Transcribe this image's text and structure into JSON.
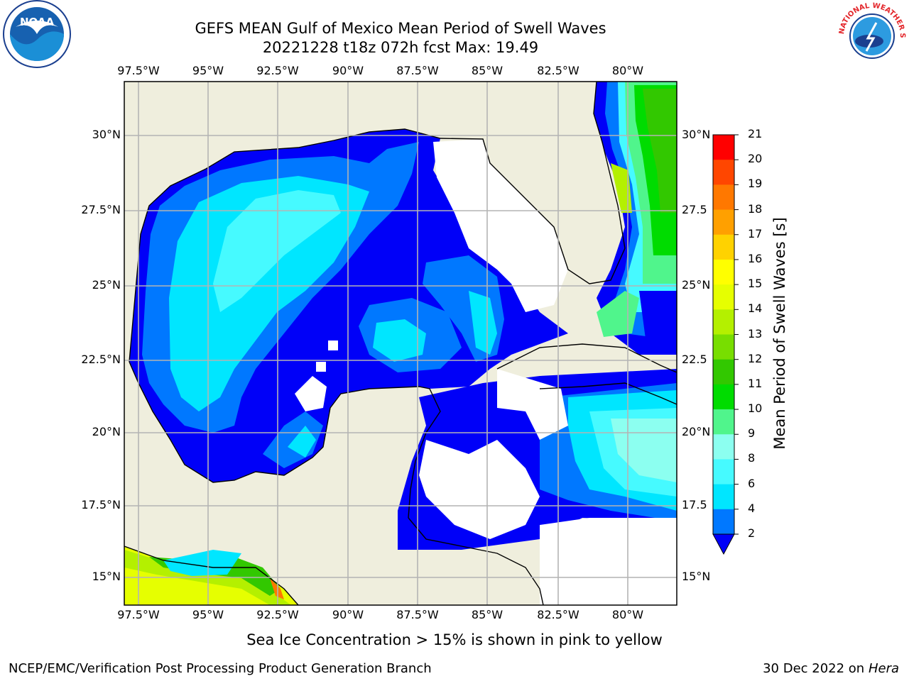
{
  "title": {
    "line1": "GEFS MEAN Gulf of Mexico Mean Period of Swell Waves",
    "line2": "20221228 t18z 072h fcst   Max: 19.49"
  },
  "map": {
    "lon_labels": [
      "97.5°W",
      "95°W",
      "92.5°W",
      "90°W",
      "87.5°W",
      "85°W",
      "82.5°W",
      "80°W"
    ],
    "lat_labels_left": [
      "30°N",
      "27.5°N",
      "25°N",
      "22.5°N",
      "20°N",
      "17.5°N",
      "15°N"
    ],
    "lat_labels_right": [
      "30°N",
      "27.5",
      "25°N",
      "22.5",
      "20°N",
      "17.5",
      "15°N"
    ],
    "lon_range": [
      -98,
      -78.3
    ],
    "lat_range": [
      14.0,
      31.7
    ],
    "land_color": "#efeedd",
    "grid": true
  },
  "colorbar": {
    "title": "Mean Period of Swell Waves [s]",
    "tick_labels": [
      "2",
      "4",
      "6",
      "8",
      "9",
      "10",
      "11",
      "12",
      "13",
      "14",
      "15",
      "16",
      "17",
      "18",
      "19",
      "20",
      "21"
    ],
    "colors": [
      "#0000f8",
      "#0078ff",
      "#00e6ff",
      "#46faff",
      "#8cfff0",
      "#50f58c",
      "#00dc00",
      "#32c800",
      "#78de00",
      "#b4f000",
      "#e6ff00",
      "#ffff00",
      "#ffd200",
      "#ffa000",
      "#ff7800",
      "#ff4600",
      "#ff0000"
    ],
    "extend": "min"
  },
  "note": "Sea Ice Concentration > 15% is shown in pink to yellow",
  "footer": {
    "credit": "NCEP/EMC/Verification Post Processing Product Generation Branch",
    "date": "30 Dec 2022 on",
    "machine": "Hera"
  },
  "logos": {
    "noaa_text": "NOAA",
    "nws_text": "NATIONAL WEATHER SERVICE"
  }
}
